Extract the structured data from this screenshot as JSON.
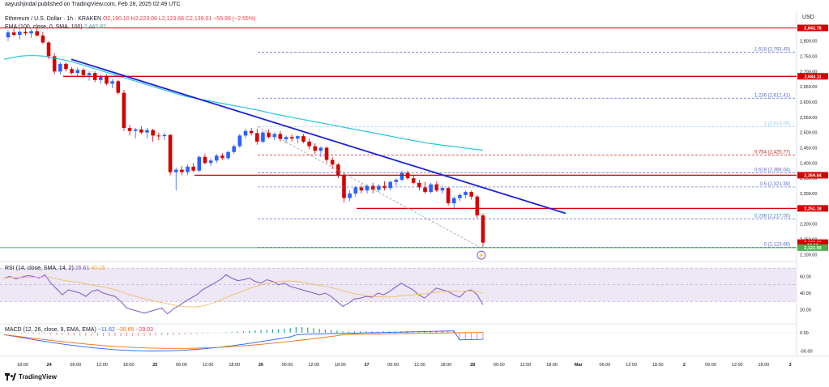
{
  "publish": {
    "author": "aayushjindal",
    "text": "published on TradingView.com, Feb 28, 2025 02:49 UTC"
  },
  "header": {
    "symbol": "Ethereum / U.S. Dollar · 1h · KRAKEN",
    "ohlc": "O2,190.10 H2,223.08 L2,123.68 C2,139.01 −55.99 (−2.55%)",
    "ema_label": "EMA (100, close, 0, SMA, 100)",
    "ema_value": "2,442.82"
  },
  "currency": "USD",
  "logo_text": "TradingView",
  "colors": {
    "up": "#2962ff",
    "down": "#d50000",
    "trendline": "#1e22d6",
    "ema": "#26c6da",
    "horizontal": "#d50000",
    "support": "#4caf50",
    "rsi": "#7e57c2",
    "rsi_band": "#ede7f6",
    "fib": "#5c6bc0",
    "fib_red": "#c62828"
  },
  "chart_data": {
    "type": "candlestick",
    "price_axis": {
      "ticks": [
        "2,800.00",
        "2,750.00",
        "2,700.00",
        "2,650.00",
        "2,600.00",
        "2,550.00",
        "2,500.00",
        "2,450.00",
        "2,400.00",
        "2,350.00",
        "2,300.00",
        "2,250.00",
        "2,200.00",
        "2,150.00",
        "2,100.00"
      ],
      "range": [
        2085,
        2860
      ]
    },
    "time_axis": [
      "18:00",
      "24",
      "06:00",
      "12:00",
      "18:00",
      "25",
      "06:00",
      "12:00",
      "18:00",
      "26",
      "06:00",
      "12:00",
      "18:00",
      "27",
      "06:00",
      "12:00",
      "18:00",
      "28",
      "06:00",
      "12:00",
      "18:00",
      "Mar",
      "06:00",
      "12:00",
      "18:00",
      "2",
      "06:00",
      "12:00",
      "18:00",
      "3"
    ],
    "price_labels": [
      {
        "text": "2,842.78",
        "value": 2842.78,
        "color": "#d50000"
      },
      {
        "text": "2,684.11",
        "value": 2684.11,
        "color": "#d50000"
      },
      {
        "text": "2,359.84",
        "value": 2359.84,
        "color": "#d50000"
      },
      {
        "text": "2,251.18",
        "value": 2251.18,
        "color": "#d50000"
      },
      {
        "text": "2,139.01",
        "value": 2139.01,
        "color": "#d50000"
      },
      {
        "text": "10:16",
        "value": 2131,
        "color": "#d50000"
      },
      {
        "text": "2,122.59",
        "value": 2122.59,
        "color": "#4caf50"
      }
    ],
    "fibonacci": [
      {
        "label": "1.618 (2,763.45)",
        "value": 2763.45
      },
      {
        "label": "1.236 (2,612.41)",
        "value": 2612.41
      },
      {
        "label": "1 (2,519.09)",
        "value": 2519.09
      },
      {
        "label": "0.764 (2,425.77)",
        "value": 2425.77
      },
      {
        "label": "0.618 (2,368.04)",
        "value": 2368.04
      },
      {
        "label": "0.5 (2,321.39)",
        "value": 2321.39
      },
      {
        "label": "0.236 (2,217.00)",
        "value": 2217.0
      },
      {
        "label": "0 (2,123.68)",
        "value": 2123.68
      }
    ],
    "candles": [
      [
        2812,
        2835,
        2800,
        2828
      ],
      [
        2828,
        2840,
        2815,
        2820
      ],
      [
        2820,
        2835,
        2805,
        2830
      ],
      [
        2830,
        2842,
        2818,
        2825
      ],
      [
        2825,
        2838,
        2810,
        2832
      ],
      [
        2832,
        2842,
        2815,
        2818
      ],
      [
        2818,
        2830,
        2790,
        2795
      ],
      [
        2795,
        2800,
        2740,
        2750
      ],
      [
        2750,
        2760,
        2690,
        2700
      ],
      [
        2700,
        2730,
        2690,
        2725
      ],
      [
        2725,
        2730,
        2700,
        2708
      ],
      [
        2708,
        2715,
        2690,
        2695
      ],
      [
        2695,
        2712,
        2685,
        2705
      ],
      [
        2705,
        2710,
        2680,
        2688
      ],
      [
        2688,
        2700,
        2670,
        2695
      ],
      [
        2695,
        2700,
        2665,
        2672
      ],
      [
        2672,
        2690,
        2660,
        2683
      ],
      [
        2683,
        2690,
        2655,
        2660
      ],
      [
        2660,
        2675,
        2645,
        2668
      ],
      [
        2668,
        2672,
        2625,
        2630
      ],
      [
        2630,
        2640,
        2505,
        2515
      ],
      [
        2515,
        2525,
        2490,
        2505
      ],
      [
        2505,
        2515,
        2480,
        2510
      ],
      [
        2510,
        2520,
        2495,
        2500
      ],
      [
        2500,
        2515,
        2480,
        2508
      ],
      [
        2508,
        2512,
        2470,
        2490
      ],
      [
        2490,
        2500,
        2475,
        2488
      ],
      [
        2488,
        2500,
        2475,
        2492
      ],
      [
        2492,
        2495,
        2360,
        2370
      ],
      [
        2370,
        2385,
        2310,
        2378
      ],
      [
        2378,
        2390,
        2360,
        2370
      ],
      [
        2370,
        2395,
        2360,
        2388
      ],
      [
        2388,
        2400,
        2370,
        2375
      ],
      [
        2375,
        2425,
        2370,
        2420
      ],
      [
        2420,
        2430,
        2395,
        2400
      ],
      [
        2400,
        2415,
        2390,
        2408
      ],
      [
        2408,
        2430,
        2400,
        2424
      ],
      [
        2424,
        2432,
        2410,
        2416
      ],
      [
        2416,
        2440,
        2410,
        2436
      ],
      [
        2436,
        2460,
        2430,
        2455
      ],
      [
        2455,
        2495,
        2450,
        2490
      ],
      [
        2490,
        2512,
        2480,
        2505
      ],
      [
        2505,
        2515,
        2490,
        2498
      ],
      [
        2498,
        2512,
        2460,
        2470
      ],
      [
        2470,
        2505,
        2465,
        2500
      ],
      [
        2500,
        2510,
        2480,
        2485
      ],
      [
        2485,
        2500,
        2475,
        2495
      ],
      [
        2495,
        2505,
        2470,
        2478
      ],
      [
        2478,
        2490,
        2465,
        2485
      ],
      [
        2485,
        2495,
        2470,
        2480
      ],
      [
        2480,
        2490,
        2465,
        2488
      ],
      [
        2488,
        2495,
        2465,
        2470
      ],
      [
        2470,
        2480,
        2445,
        2455
      ],
      [
        2455,
        2465,
        2430,
        2440
      ],
      [
        2440,
        2455,
        2420,
        2450
      ],
      [
        2450,
        2455,
        2400,
        2410
      ],
      [
        2410,
        2420,
        2380,
        2395
      ],
      [
        2395,
        2400,
        2350,
        2360
      ],
      [
        2360,
        2370,
        2270,
        2285
      ],
      [
        2285,
        2310,
        2275,
        2300
      ],
      [
        2300,
        2325,
        2290,
        2320
      ],
      [
        2320,
        2330,
        2300,
        2310
      ],
      [
        2310,
        2330,
        2300,
        2325
      ],
      [
        2325,
        2335,
        2300,
        2312
      ],
      [
        2312,
        2330,
        2305,
        2325
      ],
      [
        2325,
        2340,
        2310,
        2318
      ],
      [
        2318,
        2342,
        2310,
        2338
      ],
      [
        2338,
        2350,
        2325,
        2345
      ],
      [
        2345,
        2375,
        2340,
        2368
      ],
      [
        2368,
        2375,
        2345,
        2350
      ],
      [
        2350,
        2360,
        2330,
        2335
      ],
      [
        2335,
        2345,
        2310,
        2320
      ],
      [
        2320,
        2338,
        2300,
        2305
      ],
      [
        2305,
        2335,
        2300,
        2330
      ],
      [
        2330,
        2340,
        2305,
        2310
      ],
      [
        2310,
        2325,
        2300,
        2318
      ],
      [
        2318,
        2322,
        2260,
        2268
      ],
      [
        2268,
        2290,
        2250,
        2285
      ],
      [
        2285,
        2300,
        2275,
        2295
      ],
      [
        2295,
        2310,
        2285,
        2305
      ],
      [
        2305,
        2310,
        2280,
        2290
      ],
      [
        2290,
        2295,
        2220,
        2228
      ],
      [
        2228,
        2235,
        2125,
        2139
      ]
    ],
    "ema100": [
      2740,
      2745,
      2750,
      2752,
      2752,
      2750,
      2745,
      2740,
      2735,
      2728,
      2720,
      2712,
      2704,
      2696,
      2688,
      2680,
      2672,
      2664,
      2656,
      2648,
      2640,
      2632,
      2624,
      2617,
      2612,
      2607,
      2602,
      2597,
      2592,
      2587,
      2582,
      2577,
      2572,
      2566,
      2560,
      2555,
      2550,
      2545,
      2540,
      2535,
      2530,
      2525,
      2520,
      2515,
      2510,
      2505,
      2500,
      2495,
      2490,
      2485,
      2480,
      2475,
      2470,
      2465,
      2462,
      2458,
      2455,
      2452,
      2448,
      2445,
      2442
    ],
    "rsi": {
      "label": "RSI (14, close, SMA, 14, 2)",
      "value": "25.61",
      "ma_value": "40.15",
      "axis": [
        "60.00",
        "40.00",
        "20.00"
      ],
      "series": [
        58,
        60,
        57,
        59,
        61,
        60,
        58,
        62,
        52,
        45,
        38,
        44,
        42,
        40,
        36,
        42,
        44,
        40,
        38,
        36,
        30,
        22,
        20,
        18,
        16,
        18,
        20,
        22,
        15,
        21,
        25,
        30,
        34,
        38,
        44,
        48,
        52,
        56,
        62,
        58,
        55,
        56,
        58,
        54,
        52,
        56,
        54,
        50,
        52,
        48,
        46,
        44,
        42,
        40,
        38,
        40,
        36,
        30,
        24,
        28,
        33,
        34,
        36,
        35,
        40,
        38,
        42,
        47,
        52,
        48,
        44,
        38,
        34,
        40,
        46,
        44,
        42,
        38,
        35,
        42,
        44,
        38,
        26
      ]
    },
    "macd": {
      "label": "MACD (12, 26, close, 9, EMA, EMA)",
      "v1": "−11.62",
      "v2": "−39.65",
      "v3": "−28.03",
      "axis": [
        "0.00",
        "-50.00"
      ]
    }
  }
}
